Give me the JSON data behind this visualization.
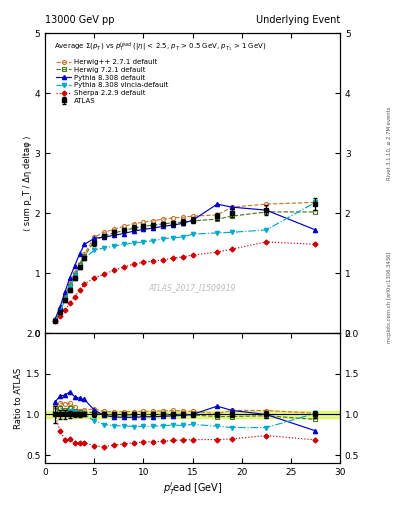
{
  "title_left": "13000 GeV pp",
  "title_right": "Underlying Event",
  "right_label_top": "Rivet 3.1.10, ≥ 2.7M events",
  "right_label_bot": "mcplots.cern.ch [arXiv:1306.3436]",
  "watermark": "ATLAS_2017_I1509919",
  "ylabel_main": "⟨ sum p_T / Δη deltaφ ⟩",
  "ylabel_ratio": "Ratio to ATLAS",
  "xlabel": "p$_T^l$ead [GeV]",
  "ylim_main": [
    0,
    5
  ],
  "ylim_ratio": [
    0.4,
    2.0
  ],
  "xlim": [
    0,
    30
  ],
  "yticks_main": [
    0,
    1,
    2,
    3,
    4,
    5
  ],
  "yticks_ratio": [
    0.5,
    1.0,
    1.5,
    2.0
  ],
  "atlas_x": [
    1.0,
    1.5,
    2.0,
    2.5,
    3.0,
    3.5,
    4.0,
    5.0,
    6.0,
    7.0,
    8.0,
    9.0,
    10.0,
    11.0,
    12.0,
    13.0,
    14.0,
    15.0,
    17.5,
    19.0,
    22.5,
    27.5
  ],
  "atlas_y": [
    0.2,
    0.35,
    0.55,
    0.72,
    0.92,
    1.1,
    1.25,
    1.5,
    1.62,
    1.68,
    1.72,
    1.76,
    1.78,
    1.8,
    1.82,
    1.83,
    1.85,
    1.88,
    1.95,
    2.0,
    2.05,
    2.15
  ],
  "atlas_yerr": [
    0.02,
    0.02,
    0.03,
    0.03,
    0.03,
    0.03,
    0.03,
    0.04,
    0.04,
    0.04,
    0.04,
    0.04,
    0.04,
    0.04,
    0.04,
    0.04,
    0.05,
    0.05,
    0.06,
    0.07,
    0.08,
    0.1
  ],
  "herwig271_x": [
    1.0,
    1.5,
    2.0,
    2.5,
    3.0,
    3.5,
    4.0,
    5.0,
    6.0,
    7.0,
    8.0,
    9.0,
    10.0,
    11.0,
    12.0,
    13.0,
    14.0,
    15.0,
    17.5,
    19.0,
    22.5,
    27.5
  ],
  "herwig271_y": [
    0.22,
    0.4,
    0.62,
    0.82,
    1.0,
    1.15,
    1.32,
    1.6,
    1.68,
    1.73,
    1.78,
    1.82,
    1.85,
    1.87,
    1.9,
    1.92,
    1.93,
    1.95,
    1.97,
    2.1,
    2.15,
    2.18
  ],
  "herwig271_color": "#c87832",
  "herwig721_x": [
    1.0,
    1.5,
    2.0,
    2.5,
    3.0,
    3.5,
    4.0,
    5.0,
    6.0,
    7.0,
    8.0,
    9.0,
    10.0,
    11.0,
    12.0,
    13.0,
    14.0,
    15.0,
    17.5,
    19.0,
    22.5,
    27.5
  ],
  "herwig721_y": [
    0.21,
    0.38,
    0.58,
    0.78,
    0.96,
    1.13,
    1.28,
    1.54,
    1.62,
    1.67,
    1.71,
    1.75,
    1.78,
    1.8,
    1.82,
    1.84,
    1.85,
    1.87,
    1.9,
    1.95,
    2.02,
    2.02
  ],
  "herwig721_color": "#4a7a20",
  "pythia8308_x": [
    1.0,
    1.5,
    2.0,
    2.5,
    3.0,
    3.5,
    4.0,
    5.0,
    6.0,
    7.0,
    8.0,
    9.0,
    10.0,
    11.0,
    12.0,
    13.0,
    14.0,
    15.0,
    17.5,
    19.0,
    22.5,
    27.5
  ],
  "pythia8308_y": [
    0.23,
    0.43,
    0.68,
    0.92,
    1.12,
    1.32,
    1.48,
    1.58,
    1.6,
    1.63,
    1.66,
    1.7,
    1.73,
    1.75,
    1.78,
    1.8,
    1.83,
    1.88,
    2.15,
    2.1,
    2.05,
    1.72
  ],
  "pythia8308_color": "#0000cc",
  "pythia8308v_x": [
    1.0,
    1.5,
    2.0,
    2.5,
    3.0,
    3.5,
    4.0,
    5.0,
    6.0,
    7.0,
    8.0,
    9.0,
    10.0,
    11.0,
    12.0,
    13.0,
    14.0,
    15.0,
    17.5,
    19.0,
    22.5,
    27.5
  ],
  "pythia8308v_y": [
    0.2,
    0.35,
    0.55,
    0.75,
    0.95,
    1.1,
    1.25,
    1.38,
    1.42,
    1.45,
    1.48,
    1.5,
    1.52,
    1.54,
    1.57,
    1.59,
    1.6,
    1.65,
    1.67,
    1.68,
    1.72,
    2.18
  ],
  "pythia8308v_color": "#00aacc",
  "sherpa229_x": [
    1.0,
    1.5,
    2.0,
    2.5,
    3.0,
    3.5,
    4.0,
    5.0,
    6.0,
    7.0,
    8.0,
    9.0,
    10.0,
    11.0,
    12.0,
    13.0,
    14.0,
    15.0,
    17.5,
    19.0,
    22.5,
    27.5
  ],
  "sherpa229_y": [
    0.2,
    0.28,
    0.38,
    0.5,
    0.6,
    0.72,
    0.82,
    0.92,
    0.98,
    1.05,
    1.1,
    1.15,
    1.18,
    1.2,
    1.22,
    1.25,
    1.27,
    1.3,
    1.35,
    1.4,
    1.52,
    1.48
  ],
  "sherpa229_color": "#cc0000",
  "band_color": "#ccee00",
  "band_alpha": 0.45,
  "band_ylow": 0.96,
  "band_yhigh": 1.04
}
